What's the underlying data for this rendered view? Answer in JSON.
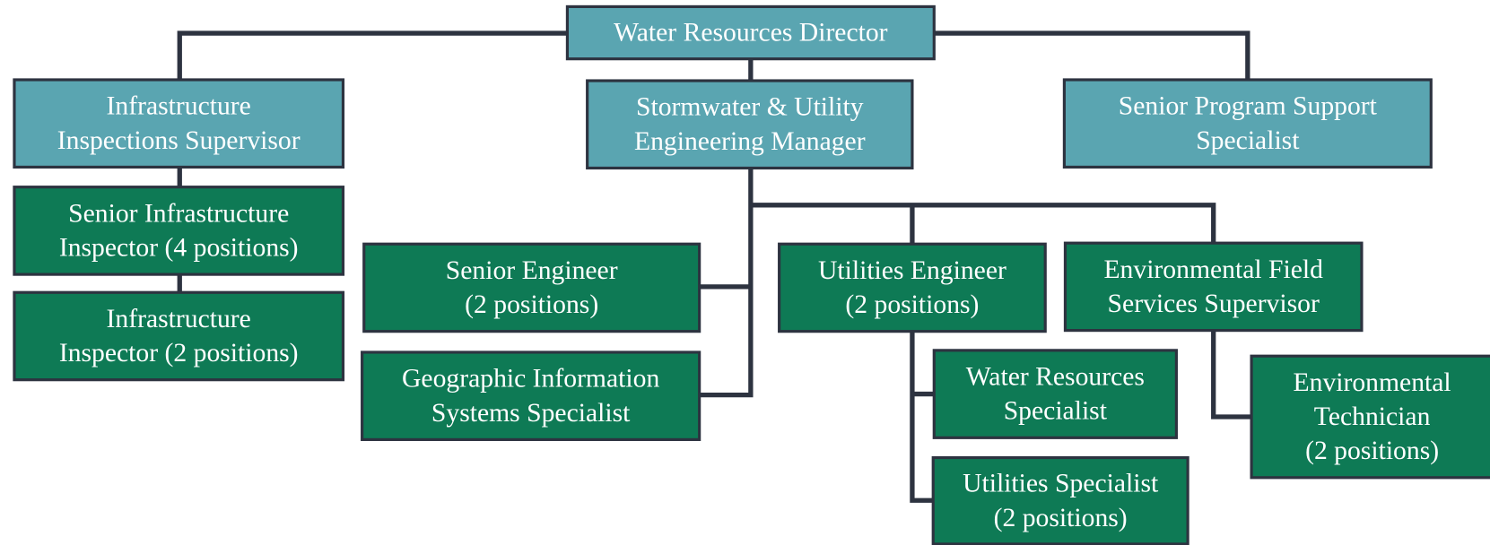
{
  "nodes": [
    {
      "lines": [
        "Water Resources Director"
      ]
    },
    {
      "lines": [
        "Infrastructure",
        "Inspections Supervisor"
      ]
    },
    {
      "lines": [
        "Stormwater & Utility",
        "Engineering Manager"
      ]
    },
    {
      "lines": [
        "Senior Program Support",
        "Specialist"
      ]
    },
    {
      "lines": [
        "Senior Infrastructure",
        "Inspector (4 positions)"
      ]
    },
    {
      "lines": [
        "Infrastructure",
        "Inspector (2 positions)"
      ]
    },
    {
      "lines": [
        "Senior Engineer",
        "(2 positions)"
      ]
    },
    {
      "lines": [
        "Geographic Information",
        "Systems Specialist"
      ]
    },
    {
      "lines": [
        "Utilities Engineer",
        "(2 positions)"
      ]
    },
    {
      "lines": [
        "Environmental Field",
        "Services Supervisor"
      ]
    },
    {
      "lines": [
        "Water Resources",
        "Specialist"
      ]
    },
    {
      "lines": [
        "Utilities Specialist",
        "(2 positions)"
      ]
    },
    {
      "lines": [
        "Environmental",
        "Technician",
        "(2 positions)"
      ]
    }
  ]
}
